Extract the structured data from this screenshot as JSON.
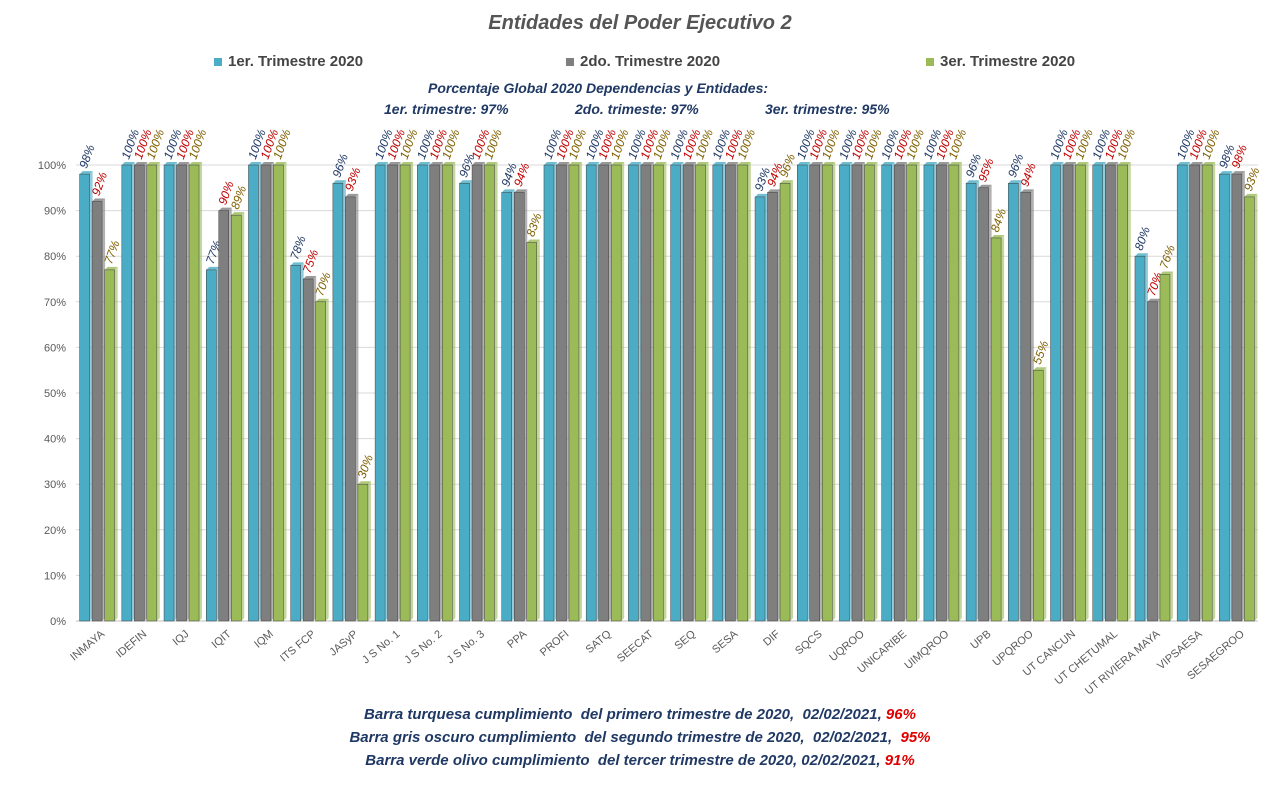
{
  "chart_data": {
    "type": "bar",
    "title": "Entidades del Poder Ejecutivo 2",
    "categories": [
      "INMAYA",
      "IDEFIN",
      "IQJ",
      "IQIT",
      "IQM",
      "ITS FCP",
      "JASyP",
      "J S No. 1",
      "J S No. 2",
      "J S No. 3",
      "PPA",
      "PROFI",
      "SATQ",
      "SEECAT",
      "SEQ",
      "SESA",
      "DIF",
      "SQCS",
      "UQROO",
      "UNICARIBE",
      "UIMQROO",
      "UPB",
      "UPQROO",
      "UT CANCUN",
      "UT CHETUMAL",
      "UT RIVIERA MAYA",
      "VIPSAESA",
      "SESAEGROO"
    ],
    "series": [
      {
        "name": "1er. Trimestre 2020",
        "color": "#4bacc6",
        "label_color": "#1f3864",
        "values": [
          98,
          100,
          100,
          77,
          100,
          78,
          96,
          100,
          100,
          96,
          94,
          100,
          100,
          100,
          100,
          100,
          93,
          100,
          100,
          100,
          100,
          96,
          96,
          100,
          100,
          80,
          100,
          98
        ]
      },
      {
        "name": "2do. Trimestre 2020",
        "color": "#7f7f7f",
        "label_color": "#c00000",
        "values": [
          92,
          100,
          100,
          90,
          100,
          75,
          93,
          100,
          100,
          100,
          94,
          100,
          100,
          100,
          100,
          100,
          94,
          100,
          100,
          100,
          100,
          95,
          94,
          100,
          100,
          70,
          100,
          98
        ]
      },
      {
        "name": "3er. Trimestre 2020",
        "color": "#9bbb59",
        "label_color": "#7f6000",
        "values": [
          77,
          100,
          100,
          89,
          100,
          70,
          30,
          100,
          100,
          100,
          83,
          100,
          100,
          100,
          100,
          100,
          96,
          100,
          100,
          100,
          100,
          84,
          55,
          100,
          100,
          76,
          100,
          93
        ]
      }
    ],
    "ylim": [
      0,
      100
    ],
    "yticks": [
      "0%",
      "10%",
      "20%",
      "30%",
      "40%",
      "50%",
      "60%",
      "70%",
      "80%",
      "90%",
      "100%"
    ],
    "grid": true,
    "legend_position": "top"
  },
  "global": {
    "heading": "Porcentaje Global  2020 Dependencias y Entidades:",
    "q1": "1er. trimestre: 97%",
    "q2": "2do. trimeste: 97%",
    "q3": "3er. trimestre: 95%"
  },
  "notes": [
    {
      "text": "Barra turquesa cumplimiento  del primero trimestre de 2020,  02/02/2021, ",
      "pct": "96%"
    },
    {
      "text": "Barra gris oscuro cumplimiento  del segundo trimestre de 2020,  02/02/2021,  ",
      "pct": "95%"
    },
    {
      "text": "Barra verde olivo cumplimiento  del tercer trimestre de 2020, 02/02/2021, ",
      "pct": "91%"
    }
  ]
}
